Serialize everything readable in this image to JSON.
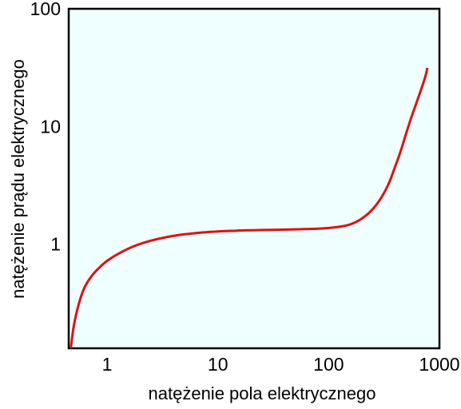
{
  "chart_data": {
    "type": "line",
    "title": "",
    "xlabel": "natężenie  pola elektrycznego",
    "ylabel": "natężenie  prądu elektrycznego",
    "xscale": "log",
    "yscale": "log",
    "xlim": [
      0.45,
      1000
    ],
    "ylim": [
      0.13,
      100
    ],
    "x_ticks": [
      1,
      10,
      100,
      1000
    ],
    "x_tick_labels": [
      "1",
      "10",
      "100",
      "1000"
    ],
    "y_ticks": [
      1,
      10,
      100
    ],
    "y_tick_labels": [
      "1",
      "10",
      "100"
    ],
    "grid": false,
    "legend": "none",
    "background": "#effefe",
    "series": [
      {
        "color": "#dd1111",
        "x": [
          0.47,
          0.5,
          0.55,
          0.62,
          0.72,
          0.85,
          1.0,
          1.3,
          1.8,
          2.5,
          3.5,
          5,
          7,
          10,
          15,
          20,
          30,
          45,
          60,
          80,
          100,
          130,
          160,
          200,
          250,
          300,
          350,
          400,
          450,
          500,
          550,
          600,
          650,
          700,
          750,
          780
        ],
        "y": [
          0.13,
          0.2,
          0.3,
          0.42,
          0.53,
          0.63,
          0.72,
          0.84,
          0.97,
          1.07,
          1.15,
          1.21,
          1.25,
          1.28,
          1.3,
          1.31,
          1.32,
          1.33,
          1.34,
          1.35,
          1.37,
          1.41,
          1.48,
          1.65,
          1.98,
          2.5,
          3.3,
          4.6,
          6.3,
          8.7,
          11.5,
          14.5,
          18,
          22,
          27,
          31.5
        ]
      }
    ]
  }
}
